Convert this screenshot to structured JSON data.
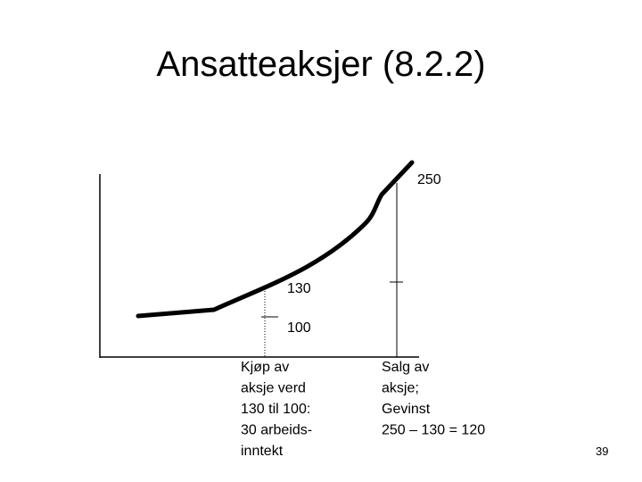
{
  "title": "Ansatteaksjer (8.2.2)",
  "labels": {
    "sale_price": "250",
    "market_price": "130",
    "purchase_price": "100"
  },
  "notes": {
    "purchase": [
      "Kjøp av",
      "aksje verd",
      "130 til 100:",
      "30 arbeids-",
      "inntekt"
    ],
    "sale": [
      "Salg av",
      "aksje;",
      "Gevinst",
      "250 – 130 = 120"
    ]
  },
  "page_number": "39"
}
